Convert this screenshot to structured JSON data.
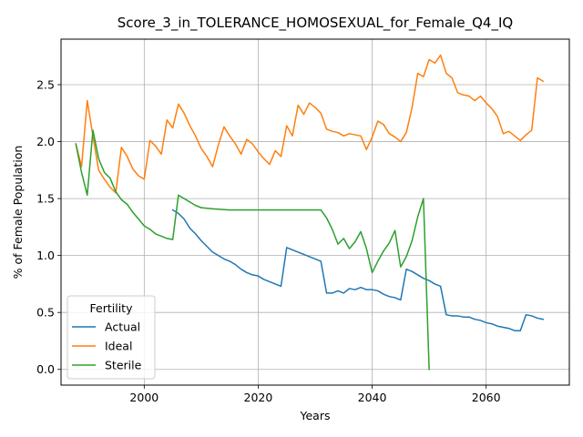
{
  "chart_data": {
    "type": "line",
    "title": "Score_3_in_TOLERANCE_HOMOSEXUAL_for_Female_Q4_IQ",
    "xlabel": "Years",
    "ylabel": "% of Female Population",
    "xlim": [
      1985.4,
      2074.6
    ],
    "ylim": [
      -0.138,
      2.9
    ],
    "xticks": [
      2000,
      2020,
      2040,
      2060
    ],
    "yticks": [
      0.0,
      0.5,
      1.0,
      1.5,
      2.0,
      2.5
    ],
    "grid": true,
    "legend": {
      "title": "Fertility",
      "placement": "lower-left"
    },
    "series": [
      {
        "name": "Actual",
        "color": "#1f77b4",
        "x": [
          2005,
          2006,
          2007,
          2008,
          2009,
          2010,
          2011,
          2012,
          2013,
          2014,
          2015,
          2016,
          2017,
          2018,
          2019,
          2020,
          2021,
          2022,
          2023,
          2024,
          2025,
          2026,
          2027,
          2028,
          2029,
          2030,
          2031,
          2032,
          2033,
          2034,
          2035,
          2036,
          2037,
          2038,
          2039,
          2040,
          2041,
          2042,
          2043,
          2044,
          2045,
          2046,
          2047,
          2048,
          2049,
          2050,
          2051,
          2052,
          2053,
          2054,
          2055,
          2056,
          2057,
          2058,
          2059,
          2060,
          2061,
          2062,
          2063,
          2064,
          2065,
          2066,
          2067,
          2068,
          2069,
          2070
        ],
        "values": [
          1.4,
          1.37,
          1.32,
          1.24,
          1.19,
          1.13,
          1.08,
          1.03,
          1.0,
          0.97,
          0.95,
          0.92,
          0.88,
          0.85,
          0.83,
          0.82,
          0.79,
          0.77,
          0.75,
          0.73,
          1.07,
          1.05,
          1.03,
          1.01,
          0.99,
          0.97,
          0.95,
          0.67,
          0.67,
          0.69,
          0.67,
          0.71,
          0.7,
          0.72,
          0.7,
          0.7,
          0.69,
          0.66,
          0.64,
          0.63,
          0.61,
          0.88,
          0.86,
          0.83,
          0.8,
          0.78,
          0.75,
          0.73,
          0.48,
          0.47,
          0.47,
          0.46,
          0.46,
          0.44,
          0.43,
          0.41,
          0.4,
          0.38,
          0.37,
          0.36,
          0.34,
          0.34,
          0.48,
          0.47,
          0.45,
          0.44
        ]
      },
      {
        "name": "Ideal",
        "color": "#ff7f0e",
        "x": [
          1988,
          1989,
          1990,
          1991,
          1992,
          1993,
          1994,
          1995,
          1996,
          1997,
          1998,
          1999,
          2000,
          2001,
          2002,
          2003,
          2004,
          2005,
          2006,
          2007,
          2008,
          2009,
          2010,
          2011,
          2012,
          2013,
          2014,
          2015,
          2016,
          2017,
          2018,
          2019,
          2020,
          2021,
          2022,
          2023,
          2024,
          2025,
          2026,
          2027,
          2028,
          2029,
          2030,
          2031,
          2032,
          2033,
          2034,
          2035,
          2036,
          2037,
          2038,
          2039,
          2040,
          2041,
          2042,
          2043,
          2044,
          2045,
          2046,
          2047,
          2048,
          2049,
          2050,
          2051,
          2052,
          2053,
          2054,
          2055,
          2056,
          2057,
          2058,
          2059,
          2060,
          2061,
          2062,
          2063,
          2064,
          2065,
          2066,
          2067,
          2068,
          2069,
          2070
        ],
        "values": [
          1.98,
          1.78,
          2.36,
          2.05,
          1.75,
          1.67,
          1.6,
          1.55,
          1.95,
          1.87,
          1.76,
          1.7,
          1.67,
          2.01,
          1.96,
          1.89,
          2.19,
          2.12,
          2.33,
          2.25,
          2.14,
          2.05,
          1.94,
          1.87,
          1.78,
          1.97,
          2.13,
          2.05,
          1.98,
          1.89,
          2.02,
          1.98,
          1.91,
          1.85,
          1.8,
          1.92,
          1.87,
          2.14,
          2.05,
          2.32,
          2.24,
          2.34,
          2.3,
          2.25,
          2.11,
          2.09,
          2.08,
          2.05,
          2.07,
          2.06,
          2.05,
          1.93,
          2.04,
          2.18,
          2.15,
          2.07,
          2.04,
          2.0,
          2.08,
          2.3,
          2.6,
          2.57,
          2.72,
          2.69,
          2.76,
          2.6,
          2.56,
          2.43,
          2.41,
          2.4,
          2.36,
          2.4,
          2.34,
          2.29,
          2.22,
          2.07,
          2.09,
          2.05,
          2.01,
          2.06,
          2.1,
          2.56,
          2.53
        ]
      },
      {
        "name": "Sterile",
        "color": "#2ca02c",
        "x": [
          1988,
          1989,
          1990,
          1991,
          1992,
          1993,
          1994,
          1995,
          1996,
          1997,
          1998,
          1999,
          2000,
          2001,
          2002,
          2003,
          2004,
          2005,
          2006,
          2007,
          2008,
          2009,
          2010,
          2012,
          2015,
          2020,
          2025,
          2031,
          2032,
          2033,
          2034,
          2035,
          2036,
          2037,
          2038,
          2039,
          2040,
          2041,
          2042,
          2043,
          2044,
          2045,
          2046,
          2047,
          2048,
          2049,
          2050
        ],
        "values": [
          1.98,
          1.73,
          1.53,
          2.1,
          1.85,
          1.73,
          1.68,
          1.56,
          1.49,
          1.45,
          1.38,
          1.32,
          1.26,
          1.23,
          1.19,
          1.17,
          1.15,
          1.14,
          1.53,
          1.5,
          1.47,
          1.44,
          1.42,
          1.41,
          1.4,
          1.4,
          1.4,
          1.4,
          1.33,
          1.23,
          1.1,
          1.15,
          1.06,
          1.12,
          1.21,
          1.06,
          0.85,
          0.95,
          1.04,
          1.11,
          1.22,
          0.9,
          0.99,
          1.13,
          1.34,
          1.5,
          0.0
        ]
      }
    ]
  }
}
